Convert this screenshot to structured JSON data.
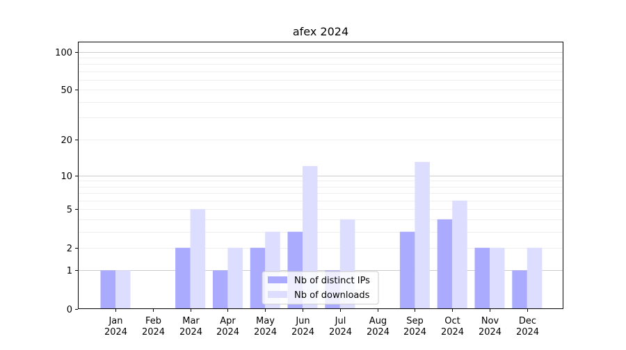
{
  "chart_data": {
    "type": "bar",
    "title": "afex 2024",
    "xlabel": "",
    "ylabel": "",
    "categories": [
      [
        "Jan",
        "2024"
      ],
      [
        "Feb",
        "2024"
      ],
      [
        "Mar",
        "2024"
      ],
      [
        "Apr",
        "2024"
      ],
      [
        "May",
        "2024"
      ],
      [
        "Jun",
        "2024"
      ],
      [
        "Jul",
        "2024"
      ],
      [
        "Aug",
        "2024"
      ],
      [
        "Sep",
        "2024"
      ],
      [
        "Oct",
        "2024"
      ],
      [
        "Nov",
        "2024"
      ],
      [
        "Dec",
        "2024"
      ]
    ],
    "series": [
      {
        "name": "Nb of distinct IPs",
        "color": "#aaaaff",
        "values": [
          1,
          0,
          2,
          1,
          2,
          3,
          1,
          0,
          3,
          4,
          2,
          1
        ]
      },
      {
        "name": "Nb of downloads",
        "color": "#ddddff",
        "values": [
          1,
          0,
          5,
          2,
          3,
          12,
          4,
          0,
          13,
          6,
          2,
          2
        ]
      }
    ],
    "y_scale": "log(1+y)",
    "ylim": [
      0,
      120
    ],
    "yticks": [
      0,
      1,
      2,
      5,
      10,
      20,
      50,
      100
    ],
    "grid": {
      "major": [
        1,
        10,
        100
      ],
      "minor": [
        2,
        3,
        4,
        5,
        6,
        7,
        8,
        9,
        20,
        30,
        40,
        50,
        60,
        70,
        80,
        90
      ]
    },
    "legend": {
      "placement": "bottom-center"
    }
  }
}
